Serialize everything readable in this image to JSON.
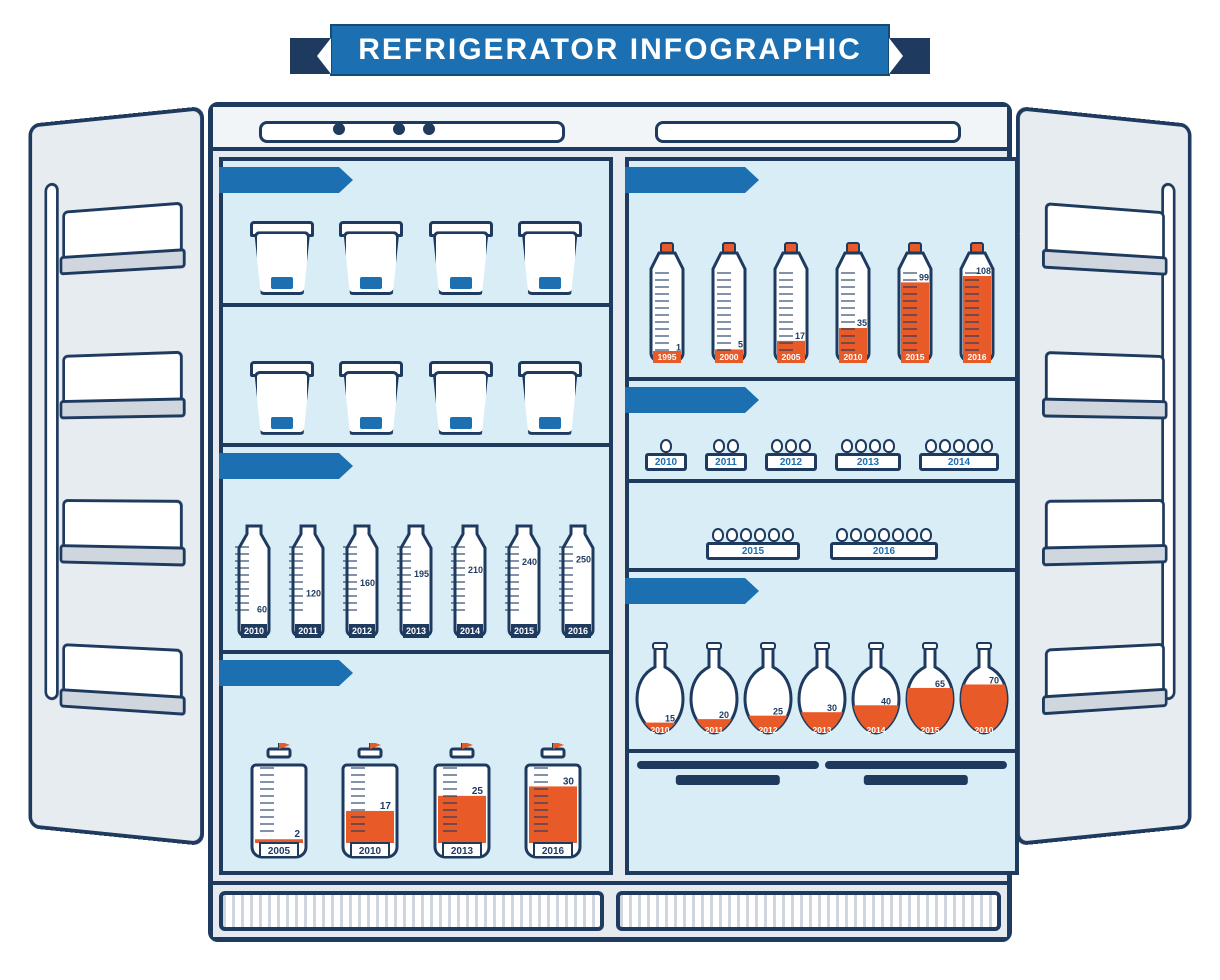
{
  "title": "REFRIGERATOR INFOGRAPHIC",
  "colors": {
    "outline": "#1e3a5f",
    "blue": "#1c6fb0",
    "fill": "#e4eaef",
    "interior": "#d9edf7",
    "orange": "#e85a28",
    "orange_cap": "#e85a28",
    "white": "#ffffff",
    "banner_dark": "#1e3a5f"
  },
  "typography": {
    "title_fontsize": 30,
    "label_fontsize": 10,
    "value_fontsize": 10,
    "font_family": "Arial"
  },
  "door_shelf_tops": [
    90,
    240,
    390,
    540
  ],
  "left": {
    "cups_row1": {
      "count": 4
    },
    "cups_row2": {
      "count": 4
    },
    "milk": {
      "type": "bar",
      "max": 260,
      "year_plate_bg": "#1e3a5f",
      "year_plate_text": "#ffffff",
      "items": [
        {
          "year": "2010",
          "value": 60
        },
        {
          "year": "2011",
          "value": 120
        },
        {
          "year": "2012",
          "value": 160
        },
        {
          "year": "2013",
          "value": 195
        },
        {
          "year": "2014",
          "value": 210
        },
        {
          "year": "2015",
          "value": 240
        },
        {
          "year": "2016",
          "value": 250
        }
      ]
    },
    "jars": {
      "type": "bar",
      "max": 35,
      "fill_color": "#e85a28",
      "year_plate_bg": "#ffffff",
      "year_plate_text": "#1e3a5f",
      "items": [
        {
          "year": "2005",
          "value": 2
        },
        {
          "year": "2010",
          "value": 17
        },
        {
          "year": "2013",
          "value": 25
        },
        {
          "year": "2016",
          "value": 30
        }
      ]
    }
  },
  "right": {
    "pbottles": {
      "type": "bar",
      "max": 115,
      "fill_color": "#e85a28",
      "cap_color": "#e85a28",
      "year_plate_bg": "#e85a28",
      "year_plate_text": "#ffffff",
      "items": [
        {
          "year": "1995",
          "value": 1
        },
        {
          "year": "2000",
          "value": 5
        },
        {
          "year": "2005",
          "value": 17
        },
        {
          "year": "2010",
          "value": 35
        },
        {
          "year": "2015",
          "value": 99
        },
        {
          "year": "2016",
          "value": 108
        }
      ]
    },
    "eggs_row1": {
      "tray_text_color": "#1c6fb0",
      "items": [
        {
          "year": "2010",
          "eggs": 1
        },
        {
          "year": "2011",
          "eggs": 2
        },
        {
          "year": "2012",
          "eggs": 3
        },
        {
          "year": "2013",
          "eggs": 4
        },
        {
          "year": "2014",
          "eggs": 5
        }
      ]
    },
    "eggs_row2": {
      "items": [
        {
          "year": "2015",
          "eggs": 6
        },
        {
          "year": "2016",
          "eggs": 7
        }
      ]
    },
    "flasks": {
      "type": "bar",
      "max": 75,
      "fill_color": "#e85a28",
      "year_plate_bg": "#e85a28",
      "year_plate_text": "#ffffff",
      "items": [
        {
          "year": "2010",
          "value": 15
        },
        {
          "year": "2011",
          "value": 20
        },
        {
          "year": "2012",
          "value": 25
        },
        {
          "year": "2013",
          "value": 30
        },
        {
          "year": "2014",
          "value": 40
        },
        {
          "year": "2015",
          "value": 65
        },
        {
          "year": "2010",
          "value": 70
        }
      ]
    }
  }
}
